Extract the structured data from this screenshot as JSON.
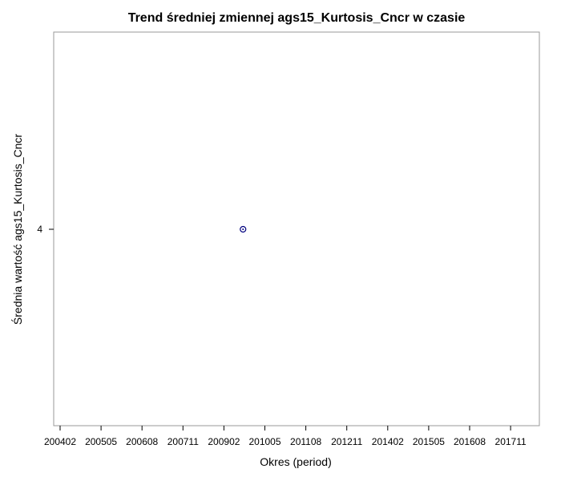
{
  "chart_data": {
    "type": "scatter",
    "title": "Trend średniej zmiennej ags15_Kurtosis_Cncr w czasie",
    "xlabel": "Okres (period)",
    "ylabel": "Średnia wartość ags15_Kurtosis_Cncr",
    "x_ticks": [
      "200402",
      "200505",
      "200608",
      "200711",
      "200902",
      "201005",
      "201108",
      "201211",
      "201402",
      "201505",
      "201608",
      "201711"
    ],
    "y_ticks": [
      4
    ],
    "series": [
      {
        "points": [
          {
            "x": "200909",
            "y": 4
          }
        ]
      }
    ],
    "grid": false,
    "colors": {
      "marker": "#00007f",
      "frame": "#9a9a9a",
      "text": "#000000"
    }
  }
}
